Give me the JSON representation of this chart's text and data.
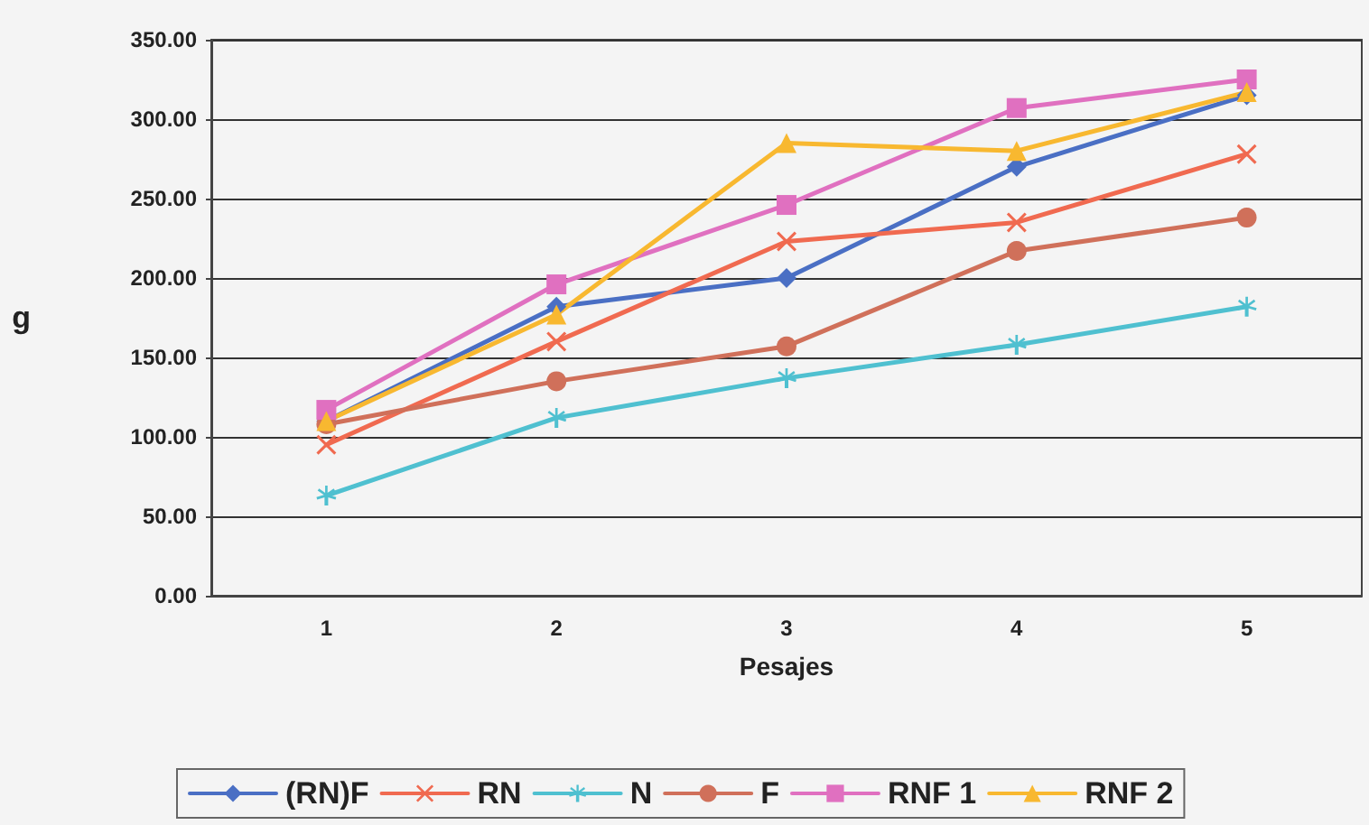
{
  "chart_data": {
    "type": "line",
    "xlabel": "Pesajes",
    "ylabel": "g",
    "categories": [
      "1",
      "2",
      "3",
      "4",
      "5"
    ],
    "series": [
      {
        "name": "(RN)F",
        "color": "#4a6fc4",
        "marker": "diamond",
        "values": [
          110,
          182,
          200,
          270,
          315
        ]
      },
      {
        "name": "RN",
        "color": "#f06a50",
        "marker": "cross",
        "values": [
          95,
          160,
          223,
          235,
          278
        ]
      },
      {
        "name": "N",
        "color": "#4fc0d0",
        "marker": "star",
        "values": [
          63,
          112,
          137,
          158,
          182
        ]
      },
      {
        "name": "F",
        "color": "#d0705a",
        "marker": "circle",
        "values": [
          108,
          135,
          157,
          217,
          238
        ]
      },
      {
        "name": "RNF 1",
        "color": "#e070c0",
        "marker": "square",
        "values": [
          117,
          196,
          246,
          307,
          325
        ]
      },
      {
        "name": "RNF 2",
        "color": "#f8b830",
        "marker": "triangle",
        "values": [
          110,
          177,
          285,
          280,
          317
        ]
      }
    ],
    "ylim": [
      0,
      350
    ],
    "yticks": [
      {
        "value": 0,
        "label": "0.00"
      },
      {
        "value": 50,
        "label": "50.00"
      },
      {
        "value": 100,
        "label": "100.00"
      },
      {
        "value": 150,
        "label": "150.00"
      },
      {
        "value": 200,
        "label": "200.00"
      },
      {
        "value": 250,
        "label": "250.00"
      },
      {
        "value": 300,
        "label": "300.00"
      },
      {
        "value": 350,
        "label": "350.00"
      }
    ],
    "grid": "y",
    "legend": "bottom",
    "line_style": "solid"
  }
}
